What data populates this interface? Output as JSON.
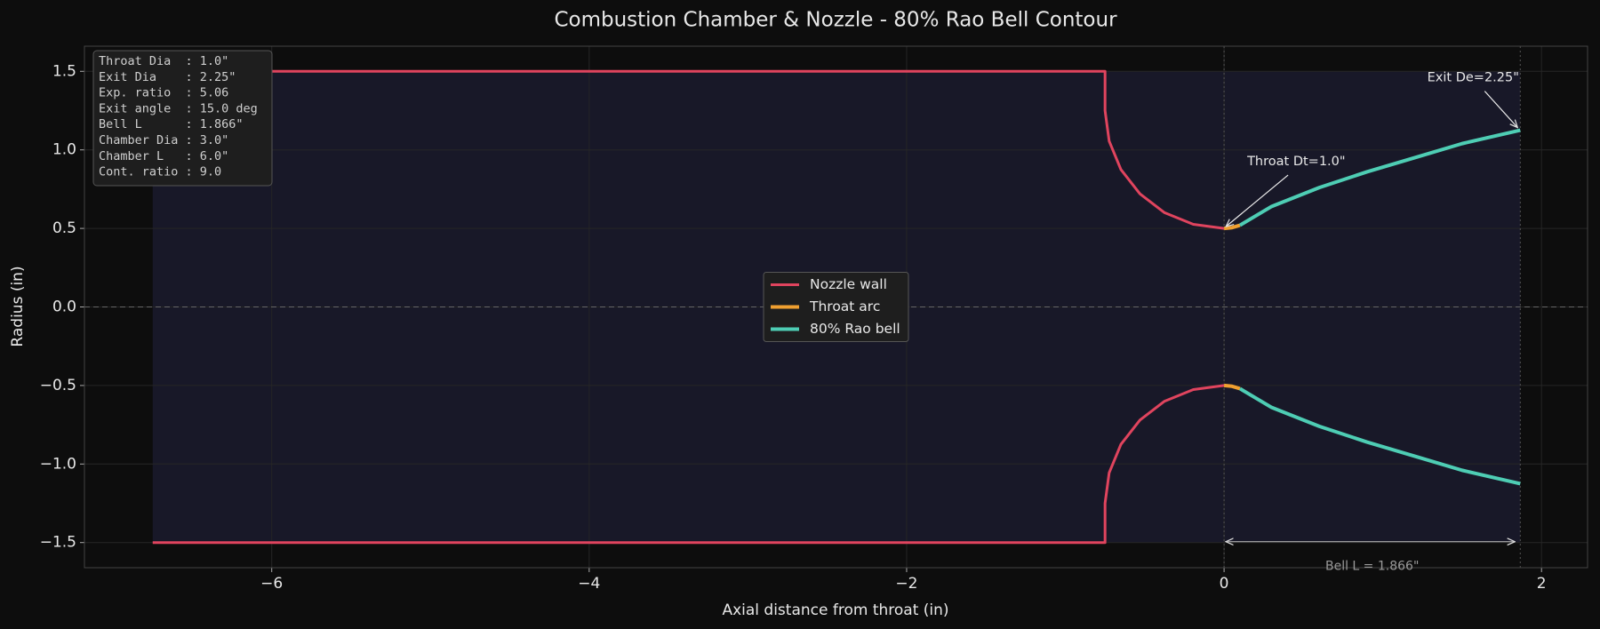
{
  "chart_data": {
    "type": "line",
    "title": "Combustion Chamber & Nozzle  -  80% Rao Bell Contour",
    "x_label": "Axial distance from throat (in)",
    "y_label": "Radius (in)",
    "xlim": [
      -7.18,
      2.29
    ],
    "ylim": [
      -1.66,
      1.66
    ],
    "xticks": [
      {
        "value": -6,
        "label": "−6"
      },
      {
        "value": -4,
        "label": "−4"
      },
      {
        "value": -2,
        "label": "−2"
      },
      {
        "value": 0,
        "label": "0"
      },
      {
        "value": 2,
        "label": "2"
      }
    ],
    "yticks": [
      {
        "value": -1.5,
        "label": "−1.5"
      },
      {
        "value": -1.0,
        "label": "−1.0"
      },
      {
        "value": -0.5,
        "label": "−0.5"
      },
      {
        "value": 0.0,
        "label": "0.0"
      },
      {
        "value": 0.5,
        "label": "0.5"
      },
      {
        "value": 1.0,
        "label": "1.0"
      },
      {
        "value": 1.5,
        "label": "1.5"
      }
    ],
    "grid": true,
    "legend": "center",
    "series": [
      {
        "name": "Nozzle wall",
        "color": "#e0445e",
        "x": [
          -6.75,
          -0.75,
          -0.75,
          -0.724,
          -0.65,
          -0.53,
          -0.375,
          -0.194,
          0,
          null,
          -6.75,
          -0.75,
          -0.75,
          -0.724,
          -0.65,
          -0.53,
          -0.375,
          -0.194,
          0
        ],
        "values": [
          1.5,
          1.5,
          1.25,
          1.056,
          0.875,
          0.72,
          0.6,
          0.526,
          0.5,
          null,
          -1.5,
          -1.5,
          -1.25,
          -1.056,
          -0.875,
          -0.72,
          -0.6,
          -0.526,
          -0.5
        ]
      },
      {
        "name": "Throat arc",
        "color": "#f0a030",
        "x": [
          0,
          0.05,
          0.1,
          null,
          0,
          0.05,
          0.1
        ],
        "values": [
          0.5,
          0.505,
          0.52,
          null,
          -0.5,
          -0.505,
          -0.52
        ]
      },
      {
        "name": "80% Rao bell",
        "color": "#4ecdb4",
        "x": [
          0.1,
          0.3,
          0.6,
          0.9,
          1.2,
          1.5,
          1.866,
          null,
          0.1,
          0.3,
          0.6,
          0.9,
          1.2,
          1.5,
          1.866
        ],
        "values": [
          0.52,
          0.64,
          0.76,
          0.86,
          0.95,
          1.04,
          1.125,
          null,
          -0.52,
          -0.64,
          -0.76,
          -0.86,
          -0.95,
          -1.04,
          -1.125
        ]
      }
    ],
    "annotations": [
      "Throat Dt=1.0\"",
      "Exit De=2.25\"",
      "Bell L = 1.866\""
    ],
    "info_box": [
      "Throat Dia  : 1.0\"",
      "Exit Dia    : 2.25\"",
      "Exp. ratio  : 5.06",
      "Exit angle  : 15.0 deg",
      "Bell L      : 1.866\"",
      "Chamber Dia : 3.0\"",
      "Chamber L   : 6.0\"",
      "Cont. ratio : 9.0"
    ]
  }
}
